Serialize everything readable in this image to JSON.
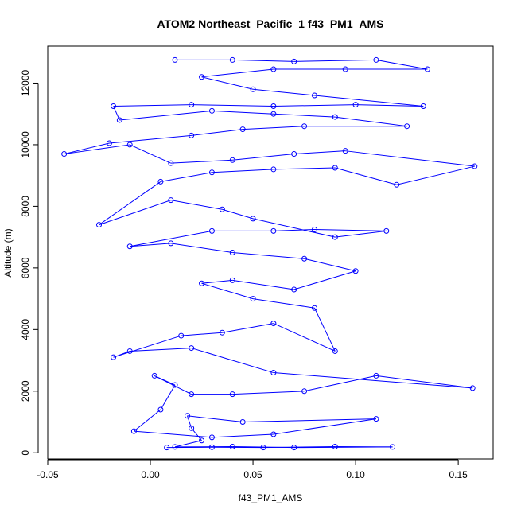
{
  "chart_data": {
    "type": "scatter",
    "title": "ATOM2 Northeast_Pacific_1 f43_PM1_AMS",
    "xlabel": "f43_PM1_AMS",
    "ylabel": "Altitude (m)",
    "xlim": [
      -0.05,
      0.167
    ],
    "ylim": [
      -200,
      13200
    ],
    "x_ticks": [
      {
        "value": -0.05,
        "label": "-0.05"
      },
      {
        "value": 0.0,
        "label": "0.00"
      },
      {
        "value": 0.05,
        "label": "0.05"
      },
      {
        "value": 0.1,
        "label": "0.10"
      },
      {
        "value": 0.15,
        "label": "0.15"
      }
    ],
    "y_ticks": [
      {
        "value": 0,
        "label": "0"
      },
      {
        "value": 2000,
        "label": "2000"
      },
      {
        "value": 4000,
        "label": "4000"
      },
      {
        "value": 6000,
        "label": "6000"
      },
      {
        "value": 8000,
        "label": "8000"
      },
      {
        "value": 10000,
        "label": "10000"
      },
      {
        "value": 12000,
        "label": "12000"
      }
    ],
    "series": [
      {
        "color": "#0000ff",
        "marker": "open-circle",
        "connected": true,
        "points": [
          {
            "x": 0.008,
            "y": 170
          },
          {
            "x": 0.03,
            "y": 180
          },
          {
            "x": 0.055,
            "y": 170
          },
          {
            "x": 0.09,
            "y": 200
          },
          {
            "x": 0.118,
            "y": 190
          },
          {
            "x": 0.07,
            "y": 170
          },
          {
            "x": 0.04,
            "y": 200
          },
          {
            "x": 0.012,
            "y": 190
          },
          {
            "x": 0.025,
            "y": 400
          },
          {
            "x": 0.02,
            "y": 800
          },
          {
            "x": 0.018,
            "y": 1200
          },
          {
            "x": 0.045,
            "y": 1000
          },
          {
            "x": 0.11,
            "y": 1100
          },
          {
            "x": 0.06,
            "y": 600
          },
          {
            "x": 0.03,
            "y": 500
          },
          {
            "x": -0.008,
            "y": 700
          },
          {
            "x": 0.005,
            "y": 1400
          },
          {
            "x": 0.012,
            "y": 2200
          },
          {
            "x": 0.002,
            "y": 2500
          },
          {
            "x": 0.02,
            "y": 1900
          },
          {
            "x": 0.04,
            "y": 1900
          },
          {
            "x": 0.075,
            "y": 2000
          },
          {
            "x": 0.11,
            "y": 2500
          },
          {
            "x": 0.157,
            "y": 2100
          },
          {
            "x": 0.06,
            "y": 2600
          },
          {
            "x": 0.02,
            "y": 3400
          },
          {
            "x": -0.01,
            "y": 3300
          },
          {
            "x": -0.018,
            "y": 3100
          },
          {
            "x": 0.015,
            "y": 3800
          },
          {
            "x": 0.035,
            "y": 3900
          },
          {
            "x": 0.06,
            "y": 4200
          },
          {
            "x": 0.09,
            "y": 3300
          },
          {
            "x": 0.08,
            "y": 4700
          },
          {
            "x": 0.05,
            "y": 5000
          },
          {
            "x": 0.025,
            "y": 5500
          },
          {
            "x": 0.04,
            "y": 5600
          },
          {
            "x": 0.07,
            "y": 5300
          },
          {
            "x": 0.1,
            "y": 5900
          },
          {
            "x": 0.075,
            "y": 6300
          },
          {
            "x": 0.04,
            "y": 6500
          },
          {
            "x": 0.01,
            "y": 6800
          },
          {
            "x": -0.01,
            "y": 6700
          },
          {
            "x": 0.03,
            "y": 7200
          },
          {
            "x": 0.06,
            "y": 7200
          },
          {
            "x": 0.08,
            "y": 7250
          },
          {
            "x": 0.115,
            "y": 7200
          },
          {
            "x": 0.09,
            "y": 7000
          },
          {
            "x": 0.05,
            "y": 7600
          },
          {
            "x": 0.035,
            "y": 7900
          },
          {
            "x": 0.01,
            "y": 8200
          },
          {
            "x": -0.025,
            "y": 7400
          },
          {
            "x": 0.005,
            "y": 8800
          },
          {
            "x": 0.03,
            "y": 9100
          },
          {
            "x": 0.06,
            "y": 9200
          },
          {
            "x": 0.09,
            "y": 9250
          },
          {
            "x": 0.12,
            "y": 8700
          },
          {
            "x": 0.158,
            "y": 9300
          },
          {
            "x": 0.095,
            "y": 9800
          },
          {
            "x": 0.07,
            "y": 9700
          },
          {
            "x": 0.04,
            "y": 9500
          },
          {
            "x": 0.01,
            "y": 9400
          },
          {
            "x": -0.01,
            "y": 10000
          },
          {
            "x": -0.042,
            "y": 9700
          },
          {
            "x": -0.02,
            "y": 10050
          },
          {
            "x": 0.02,
            "y": 10300
          },
          {
            "x": 0.045,
            "y": 10500
          },
          {
            "x": 0.075,
            "y": 10600
          },
          {
            "x": 0.125,
            "y": 10600
          },
          {
            "x": 0.09,
            "y": 10900
          },
          {
            "x": 0.06,
            "y": 11000
          },
          {
            "x": 0.03,
            "y": 11100
          },
          {
            "x": -0.015,
            "y": 10800
          },
          {
            "x": -0.018,
            "y": 11250
          },
          {
            "x": 0.02,
            "y": 11300
          },
          {
            "x": 0.06,
            "y": 11250
          },
          {
            "x": 0.1,
            "y": 11300
          },
          {
            "x": 0.133,
            "y": 11250
          },
          {
            "x": 0.08,
            "y": 11600
          },
          {
            "x": 0.05,
            "y": 11800
          },
          {
            "x": 0.025,
            "y": 12200
          },
          {
            "x": 0.06,
            "y": 12450
          },
          {
            "x": 0.095,
            "y": 12450
          },
          {
            "x": 0.135,
            "y": 12450
          },
          {
            "x": 0.11,
            "y": 12750
          },
          {
            "x": 0.07,
            "y": 12700
          },
          {
            "x": 0.04,
            "y": 12750
          },
          {
            "x": 0.012,
            "y": 12750
          }
        ]
      }
    ]
  }
}
